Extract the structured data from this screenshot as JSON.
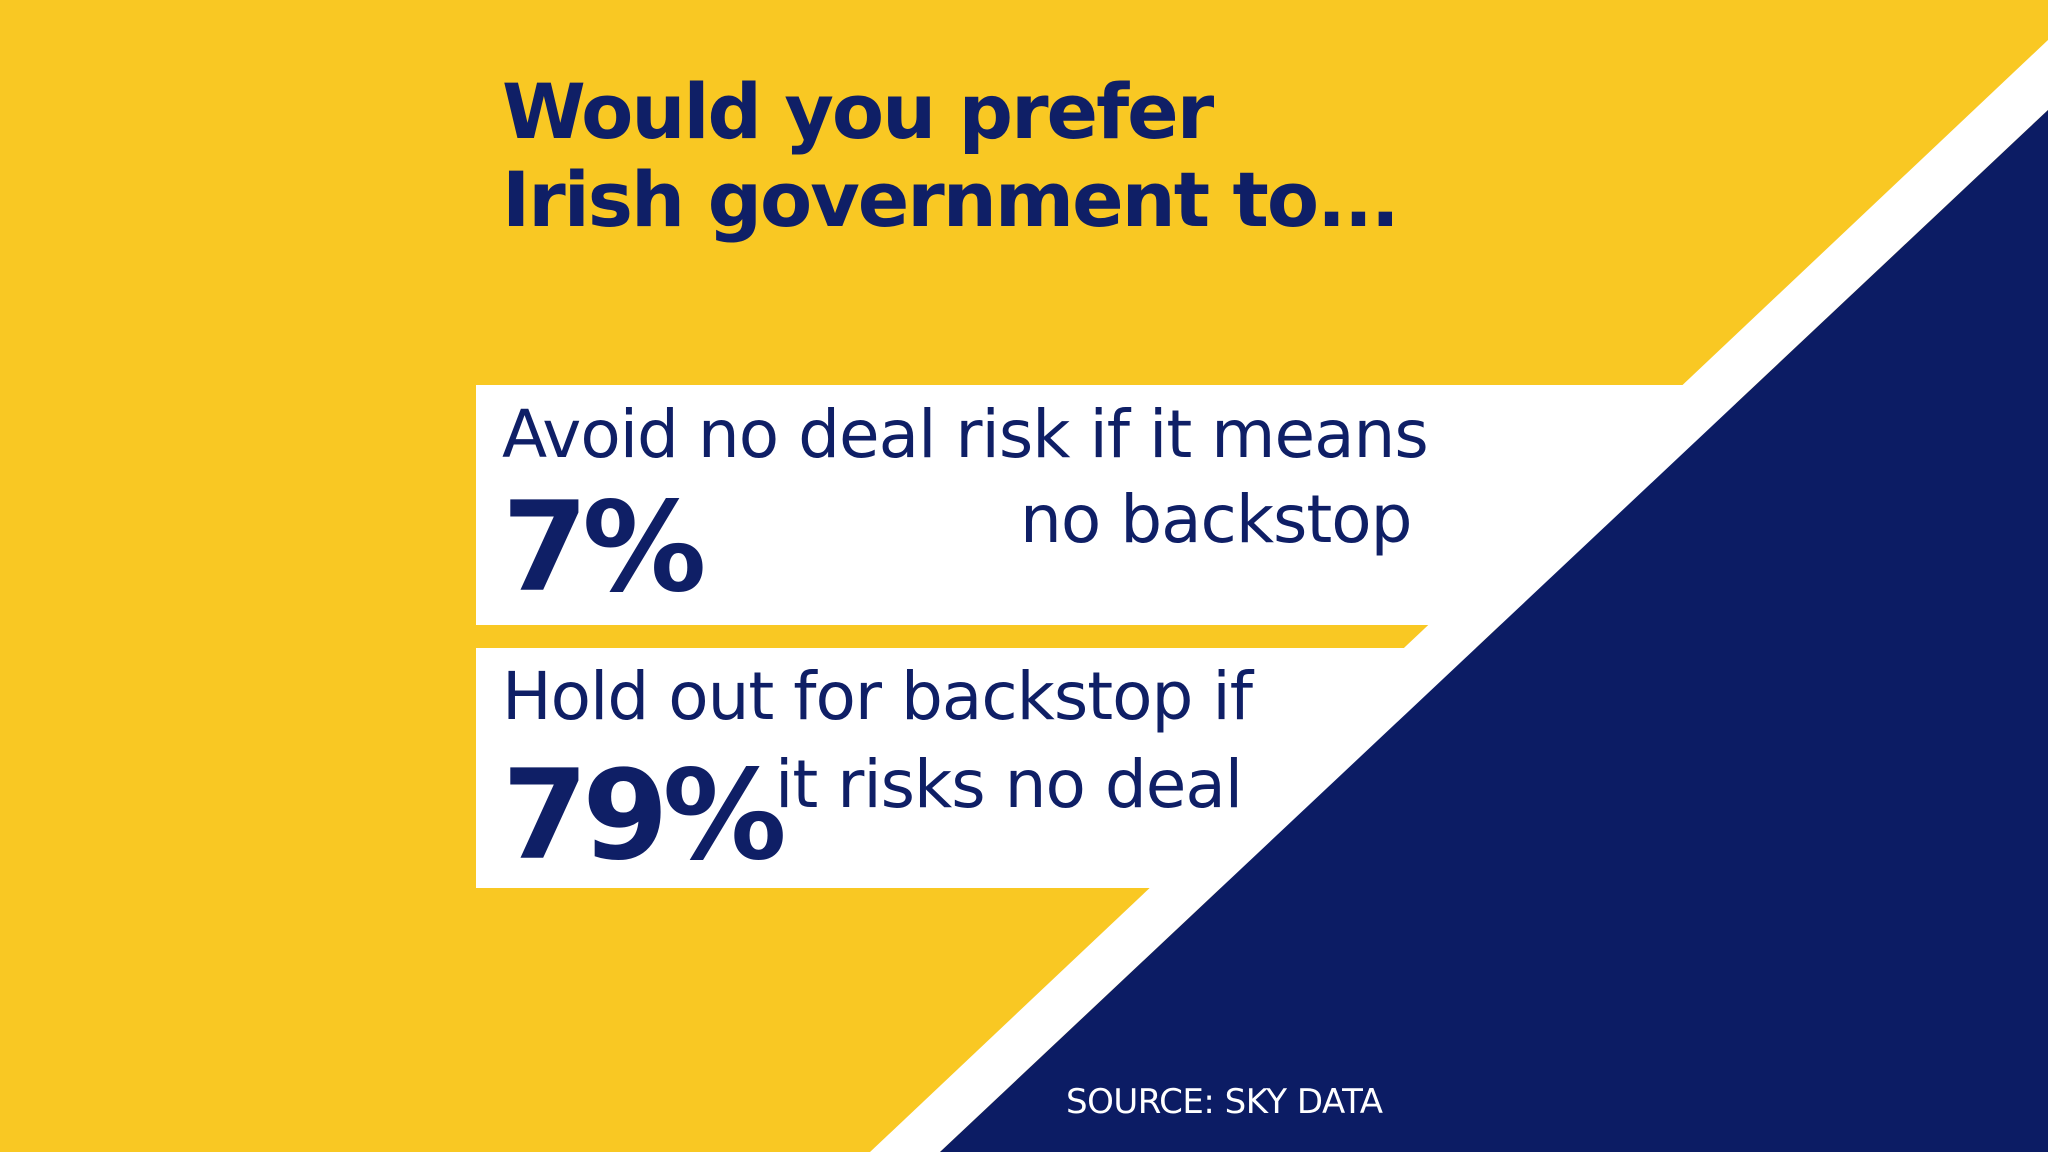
{
  "colors": {
    "yellow": "#f9c823",
    "navy": "#0c1c64",
    "white": "#ffffff",
    "text": "#0f1f66"
  },
  "headline": {
    "line1": "Would you prefer",
    "line2": "Irish government to..."
  },
  "options": [
    {
      "percent": "7%",
      "text_line1": "Avoid no deal risk if it means",
      "text_line2": "no backstop"
    },
    {
      "percent": "79%",
      "text_line1": "Hold out for backstop if",
      "text_line2": "it risks no deal"
    }
  ],
  "source": "SOURCE: SKY DATA"
}
